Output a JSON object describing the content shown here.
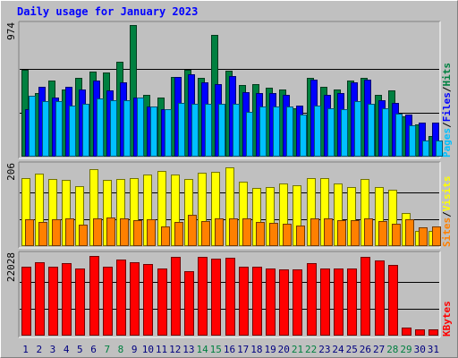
{
  "title": "Daily usage for January 2023",
  "colors": {
    "background": "#c0c0c0",
    "title": "#0000ff",
    "hits": "#008040",
    "files": "#0000ff",
    "pages": "#00c0ff",
    "visits": "#ffff00",
    "sites": "#ff8000",
    "kbytes": "#ff0000",
    "weekday_label": "#000080",
    "weekend_label": "#008040",
    "separator": "#000000"
  },
  "chart_data": [
    {
      "type": "bar",
      "panel": "hits-files-pages",
      "ymax_label": "974",
      "ylim": [
        0,
        974
      ],
      "legend": [
        "Pages",
        "Files",
        "Hits"
      ],
      "categories": [
        "1",
        "2",
        "3",
        "4",
        "5",
        "6",
        "7",
        "8",
        "9",
        "10",
        "11",
        "12",
        "13",
        "14",
        "15",
        "16",
        "17",
        "18",
        "19",
        "20",
        "21",
        "22",
        "23",
        "24",
        "25",
        "26",
        "27",
        "28",
        "29",
        "30",
        "31"
      ],
      "series": [
        {
          "name": "Hits",
          "values": [
            640,
            470,
            560,
            500,
            580,
            630,
            620,
            700,
            975,
            460,
            440,
            590,
            640,
            580,
            900,
            635,
            530,
            540,
            510,
            500,
            360,
            580,
            520,
            500,
            560,
            580,
            460,
            490,
            300,
            240,
            150
          ]
        },
        {
          "name": "Files",
          "values": [
            350,
            520,
            440,
            520,
            500,
            560,
            490,
            550,
            440,
            370,
            350,
            590,
            610,
            550,
            540,
            595,
            480,
            470,
            470,
            460,
            380,
            570,
            460,
            470,
            550,
            570,
            420,
            400,
            310,
            250,
            250
          ]
        },
        {
          "name": "Pages",
          "values": [
            450,
            410,
            410,
            380,
            390,
            430,
            420,
            420,
            440,
            370,
            350,
            400,
            390,
            390,
            390,
            390,
            330,
            370,
            370,
            370,
            310,
            380,
            360,
            350,
            410,
            390,
            360,
            320,
            230,
            120,
            120
          ]
        }
      ]
    },
    {
      "type": "bar",
      "panel": "visits-sites",
      "ymax_label": "206",
      "ylim": [
        0,
        206
      ],
      "legend": [
        "Sites",
        "Visits"
      ],
      "categories": [
        "1",
        "2",
        "3",
        "4",
        "5",
        "6",
        "7",
        "8",
        "9",
        "10",
        "11",
        "12",
        "13",
        "14",
        "15",
        "16",
        "17",
        "18",
        "19",
        "20",
        "21",
        "22",
        "23",
        "24",
        "25",
        "26",
        "27",
        "28",
        "29",
        "30",
        "31"
      ],
      "series": [
        {
          "name": "Visits",
          "values": [
            175,
            185,
            172,
            170,
            153,
            196,
            170,
            172,
            175,
            182,
            192,
            182,
            172,
            188,
            190,
            202,
            165,
            148,
            150,
            160,
            155,
            174,
            174,
            160,
            150,
            172,
            150,
            145,
            84,
            40,
            40
          ]
        },
        {
          "name": "Sites",
          "values": [
            68,
            62,
            68,
            70,
            56,
            72,
            73,
            70,
            67,
            68,
            50,
            62,
            79,
            64,
            72,
            71,
            71,
            62,
            60,
            58,
            52,
            70,
            70,
            66,
            66,
            70,
            64,
            58,
            68,
            48,
            50
          ]
        }
      ]
    },
    {
      "type": "bar",
      "panel": "kbytes",
      "ymax_label": "22028",
      "ylim": [
        0,
        22028
      ],
      "legend": [
        "KBytes"
      ],
      "categories": [
        "1",
        "2",
        "3",
        "4",
        "5",
        "6",
        "7",
        "8",
        "9",
        "10",
        "11",
        "12",
        "13",
        "14",
        "15",
        "16",
        "17",
        "18",
        "19",
        "20",
        "21",
        "22",
        "23",
        "24",
        "25",
        "26",
        "27",
        "28",
        "29",
        "30",
        "31"
      ],
      "series": [
        {
          "name": "KBytes",
          "values": [
            18800,
            20050,
            18800,
            19900,
            18300,
            21900,
            18800,
            20700,
            20050,
            19700,
            18300,
            21600,
            17550,
            21550,
            21000,
            21300,
            18800,
            18800,
            18350,
            18100,
            18000,
            19900,
            18300,
            18300,
            18300,
            21600,
            20500,
            19300,
            2300,
            1800,
            1800
          ]
        }
      ]
    }
  ],
  "day_label_colors": [
    "weekday",
    "weekday",
    "weekday",
    "weekday",
    "weekday",
    "weekday",
    "weekend",
    "weekend",
    "weekday",
    "weekday",
    "weekday",
    "weekday",
    "weekday",
    "weekend",
    "weekend",
    "weekday",
    "weekday",
    "weekday",
    "weekday",
    "weekday",
    "weekend",
    "weekend",
    "weekday",
    "weekday",
    "weekday",
    "weekday",
    "weekday",
    "weekend",
    "weekend",
    "weekday",
    "weekday"
  ]
}
